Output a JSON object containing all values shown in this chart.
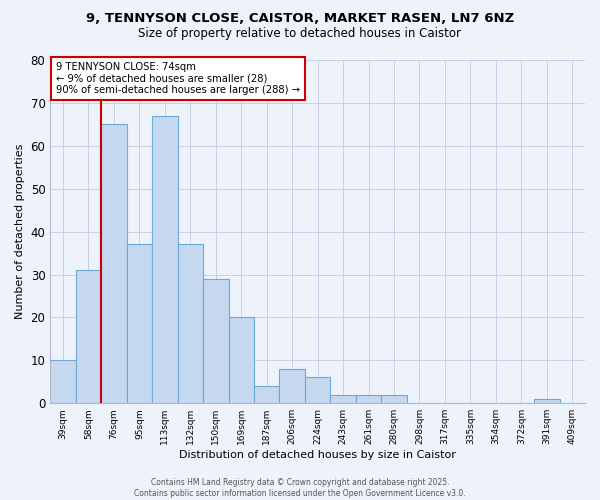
{
  "title1": "9, TENNYSON CLOSE, CAISTOR, MARKET RASEN, LN7 6NZ",
  "title2": "Size of property relative to detached houses in Caistor",
  "xlabel": "Distribution of detached houses by size in Caistor",
  "ylabel": "Number of detached properties",
  "bins": [
    "39sqm",
    "58sqm",
    "76sqm",
    "95sqm",
    "113sqm",
    "132sqm",
    "150sqm",
    "169sqm",
    "187sqm",
    "206sqm",
    "224sqm",
    "243sqm",
    "261sqm",
    "280sqm",
    "298sqm",
    "317sqm",
    "335sqm",
    "354sqm",
    "372sqm",
    "391sqm",
    "409sqm"
  ],
  "values": [
    10,
    31,
    65,
    37,
    67,
    37,
    29,
    20,
    4,
    8,
    6,
    2,
    2,
    2,
    0,
    0,
    0,
    0,
    0,
    1,
    0
  ],
  "bar_color": "#c5d8f0",
  "bar_edge_color": "#6aaad4",
  "red_line_bin_index": 2,
  "annotation_line1": "9 TENNYSON CLOSE: 74sqm",
  "annotation_line2": "← 9% of detached houses are smaller (28)",
  "annotation_line3": "90% of semi-detached houses are larger (288) →",
  "annotation_box_edge": "#cc0000",
  "annotation_box_bg": "#ffffff",
  "red_line_color": "#cc0000",
  "ylim": [
    0,
    80
  ],
  "yticks": [
    0,
    10,
    20,
    30,
    40,
    50,
    60,
    70,
    80
  ],
  "background_color": "#eef2fa",
  "footer_text": "Contains HM Land Registry data © Crown copyright and database right 2025.\nContains public sector information licensed under the Open Government Licence v3.0.",
  "grid_color": "#c8d0e8",
  "title1_fontsize": 9.5,
  "title2_fontsize": 8.5
}
